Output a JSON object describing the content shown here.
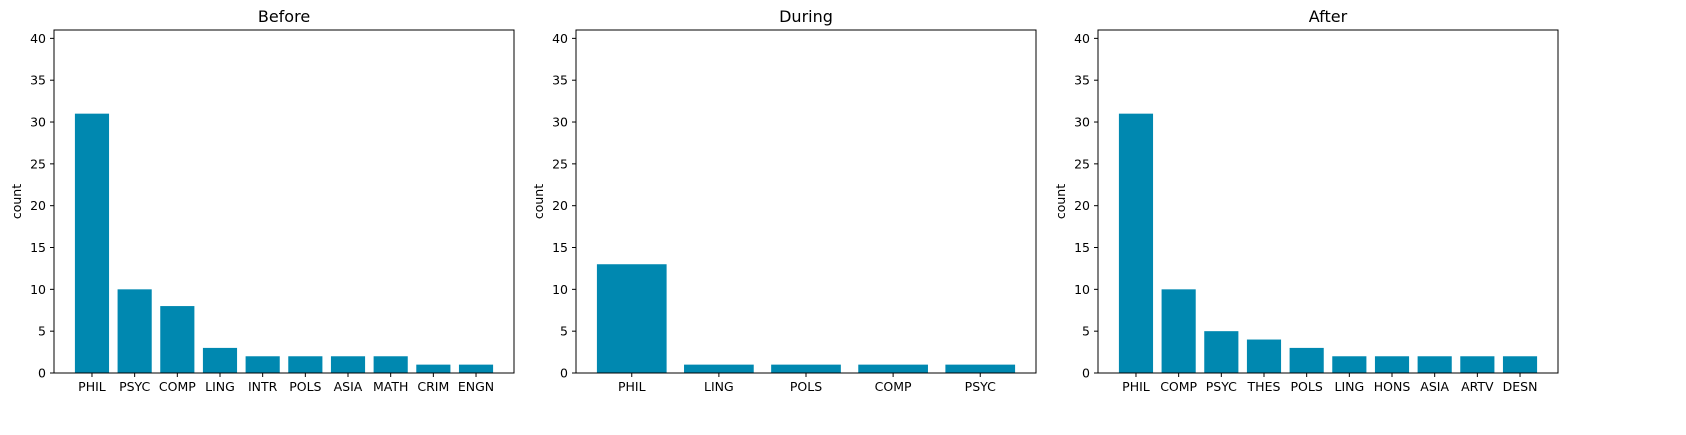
{
  "chart_data": [
    {
      "type": "bar",
      "title": "Before",
      "xlabel": "",
      "ylabel": "count",
      "ylim": [
        0,
        41
      ],
      "yticks": [
        0,
        5,
        10,
        15,
        20,
        25,
        30,
        35,
        40
      ],
      "categories": [
        "PHIL",
        "PSYC",
        "COMP",
        "LING",
        "INTR",
        "POLS",
        "ASIA",
        "MATH",
        "CRIM",
        "ENGN"
      ],
      "values": [
        31,
        10,
        8,
        3,
        2,
        2,
        2,
        2,
        1,
        1
      ],
      "color": "#0088b0",
      "grid": false
    },
    {
      "type": "bar",
      "title": "During",
      "xlabel": "",
      "ylabel": "count",
      "ylim": [
        0,
        41
      ],
      "yticks": [
        0,
        5,
        10,
        15,
        20,
        25,
        30,
        35,
        40
      ],
      "categories": [
        "PHIL",
        "LING",
        "POLS",
        "COMP",
        "PSYC"
      ],
      "values": [
        13,
        1,
        1,
        1,
        1
      ],
      "color": "#0088b0",
      "grid": false
    },
    {
      "type": "bar",
      "title": "After",
      "xlabel": "",
      "ylabel": "count",
      "ylim": [
        0,
        41
      ],
      "yticks": [
        0,
        5,
        10,
        15,
        20,
        25,
        30,
        35,
        40
      ],
      "categories": [
        "PHIL",
        "COMP",
        "PSYC",
        "THES",
        "POLS",
        "LING",
        "HONS",
        "ASIA",
        "ARTV",
        "DESN"
      ],
      "values": [
        31,
        10,
        5,
        4,
        3,
        2,
        2,
        2,
        2,
        2
      ],
      "color": "#0088b0",
      "grid": false
    }
  ]
}
